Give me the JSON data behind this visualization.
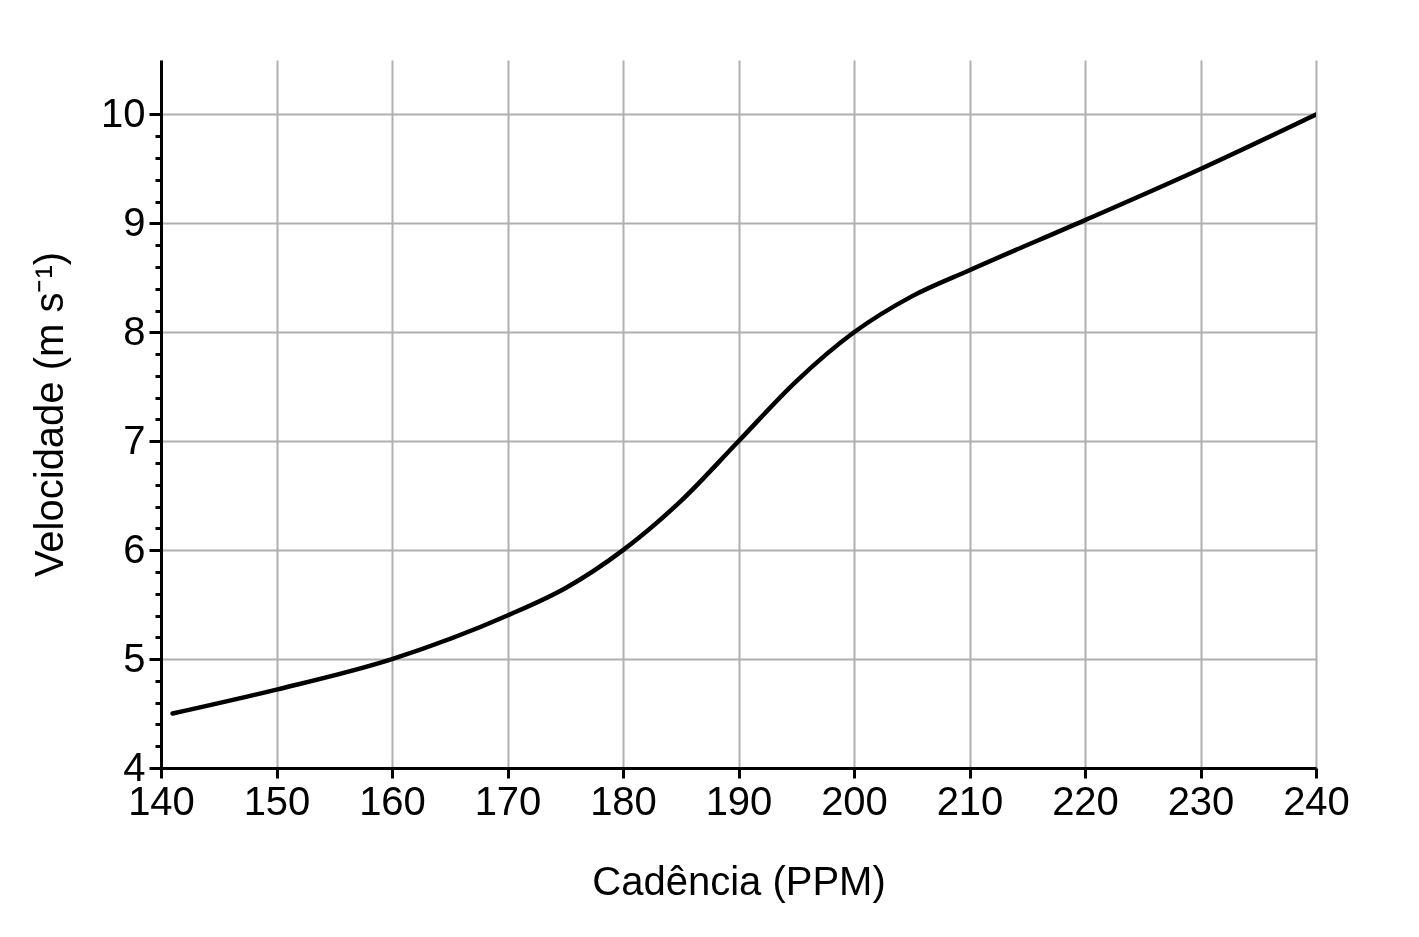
{
  "chart_data": {
    "type": "line",
    "xlabel": "Cadência (PPM)",
    "ylabel": "Velocidade (m s⁻¹)",
    "x": [
      141,
      150,
      160,
      170,
      175,
      180,
      185,
      190,
      195,
      200,
      205,
      210,
      220,
      230,
      240
    ],
    "series": [
      {
        "color": "#000000",
        "values": [
          4.5,
          4.72,
          5.0,
          5.4,
          5.65,
          6.0,
          6.45,
          7.0,
          7.55,
          8.0,
          8.33,
          8.57,
          9.03,
          9.5,
          10.0
        ]
      }
    ],
    "xlim": [
      140,
      240
    ],
    "xticks": [
      140,
      150,
      160,
      170,
      180,
      190,
      200,
      210,
      220,
      230,
      240
    ],
    "ylim": [
      4,
      10.5
    ],
    "yticks": [
      4,
      {
        "value": 4.2,
        "label": null
      },
      {
        "value": 4.4,
        "label": null
      },
      {
        "value": 4.6,
        "label": null
      },
      {
        "value": 4.8,
        "label": null
      },
      5,
      {
        "value": 5.2,
        "label": null
      },
      {
        "value": 5.4,
        "label": null
      },
      {
        "value": 5.6,
        "label": null
      },
      {
        "value": 5.8,
        "label": null
      },
      6,
      {
        "value": 6.2,
        "label": null
      },
      {
        "value": 6.4,
        "label": null
      },
      {
        "value": 6.6,
        "label": null
      },
      {
        "value": 6.8,
        "label": null
      },
      7,
      {
        "value": 7.2,
        "label": null
      },
      {
        "value": 7.4,
        "label": null
      },
      {
        "value": 7.6,
        "label": null
      },
      {
        "value": 7.8,
        "label": null
      },
      8,
      {
        "value": 8.2,
        "label": null
      },
      {
        "value": 8.4,
        "label": null
      },
      {
        "value": 8.6,
        "label": null
      },
      {
        "value": 8.8,
        "label": null
      },
      9,
      {
        "value": 9.2,
        "label": null
      },
      {
        "value": 9.4,
        "label": null
      },
      {
        "value": 9.6,
        "label": null
      },
      {
        "value": 9.8,
        "label": null
      },
      10
    ],
    "grid": true,
    "marker": "none",
    "line_style": "solid"
  }
}
